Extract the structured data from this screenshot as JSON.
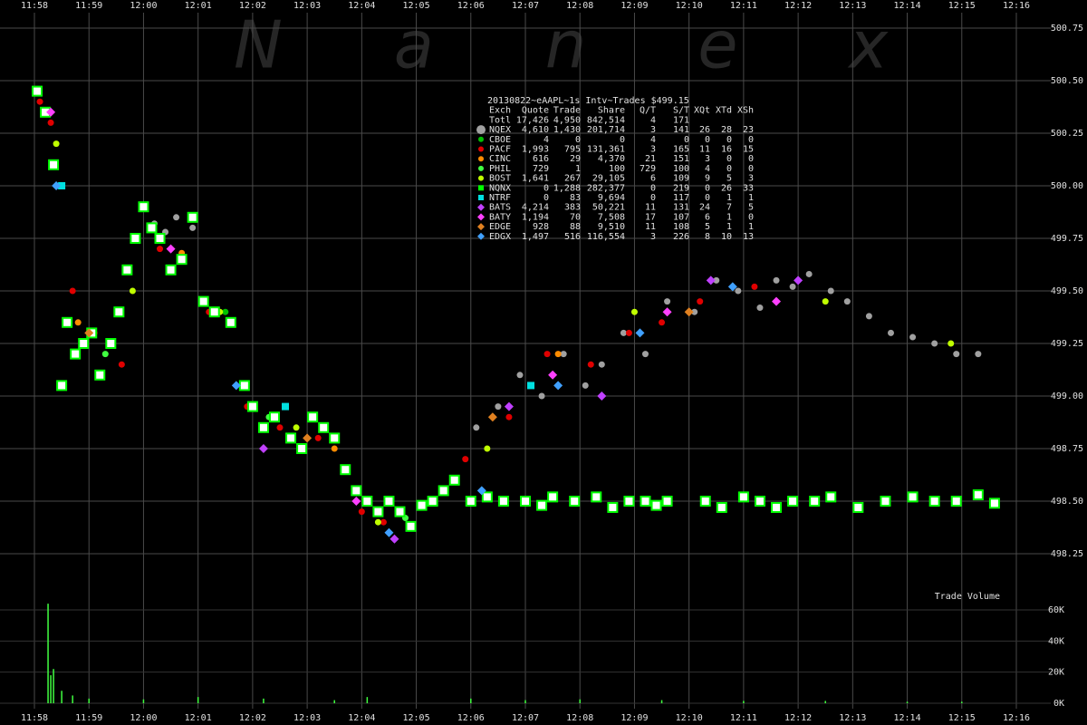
{
  "chart_data": {
    "type": "scatter",
    "watermark": "N a n e x",
    "xticks": [
      {
        "value": 0,
        "label": "11:58"
      },
      {
        "value": 1,
        "label": "11:59"
      },
      {
        "value": 2,
        "label": "12:00"
      },
      {
        "value": 3,
        "label": "12:01"
      },
      {
        "value": 4,
        "label": "12:02"
      },
      {
        "value": 5,
        "label": "12:03"
      },
      {
        "value": 6,
        "label": "12:04"
      },
      {
        "value": 7,
        "label": "12:05"
      },
      {
        "value": 8,
        "label": "12:06"
      },
      {
        "value": 9,
        "label": "12:07"
      },
      {
        "value": 10,
        "label": "12:08"
      },
      {
        "value": 11,
        "label": "12:09"
      },
      {
        "value": 12,
        "label": "12:10"
      },
      {
        "value": 13,
        "label": "12:11"
      },
      {
        "value": 14,
        "label": "12:12"
      },
      {
        "value": 15,
        "label": "12:13"
      },
      {
        "value": 16,
        "label": "12:14"
      },
      {
        "value": 17,
        "label": "12:15"
      },
      {
        "value": 18,
        "label": "12:16"
      }
    ],
    "xlim": [
      0,
      18
    ],
    "ylim": [
      498.25,
      500.75
    ],
    "yticks": [
      498.25,
      {
        "value": 498.5,
        "label": "498.50"
      },
      498.75,
      {
        "value": 499,
        "label": "499.00"
      },
      499.25,
      {
        "value": 499.5,
        "label": "499.50"
      },
      499.75,
      {
        "value": 500,
        "label": "500.00"
      },
      500.25,
      {
        "value": 500.5,
        "label": "500.50"
      },
      500.75
    ],
    "grid": true,
    "table_title": "20130822~eAAPL~1s Intv~Trades $499.15",
    "columns": [
      "Exch",
      "Quote",
      "Trade",
      "Share",
      "Q/T",
      "S/T",
      "XQt",
      "XTd",
      "XSh"
    ],
    "series": [
      {
        "name": "Totl",
        "stats": [
          "17,426",
          "4,950",
          "842,514",
          "4",
          "171"
        ],
        "x": [],
        "values": []
      },
      {
        "name": "NQEX",
        "color": "#a0a0a0",
        "marker": "circle",
        "stats": [
          "4,610",
          "1,430",
          "201,714",
          "3",
          "141",
          "26",
          "28",
          "23"
        ],
        "x": [
          2.2,
          2.4,
          2.6,
          2.9,
          8.1,
          8.5,
          8.9,
          9.3,
          9.7,
          10.1,
          10.4,
          10.8,
          11.2,
          11.6,
          12.1,
          12.5,
          12.9,
          13.3,
          13.6,
          13.9,
          14.2,
          14.6,
          14.9,
          15.3,
          15.7,
          16.1,
          16.5,
          16.9,
          17.3
        ],
        "values": [
          499.82,
          499.78,
          499.85,
          499.8,
          498.85,
          498.95,
          499.1,
          499.0,
          499.2,
          499.05,
          499.15,
          499.3,
          499.2,
          499.45,
          499.4,
          499.55,
          499.5,
          499.42,
          499.55,
          499.52,
          499.58,
          499.5,
          499.45,
          499.38,
          499.3,
          499.28,
          499.25,
          499.2,
          499.2
        ]
      },
      {
        "name": "CBOE",
        "color": "#00c000",
        "marker": "circle",
        "stats": [
          "4",
          "0",
          "0",
          "4",
          "0",
          "0",
          "0",
          "0"
        ],
        "x": [
          3.5
        ],
        "values": [
          499.4
        ]
      },
      {
        "name": "PACF",
        "color": "#e00000",
        "marker": "circle",
        "stats": [
          "1,993",
          "795",
          "131,361",
          "3",
          "165",
          "11",
          "16",
          "15"
        ],
        "x": [
          0.1,
          0.3,
          0.7,
          1.1,
          1.6,
          2.3,
          3.2,
          3.9,
          4.5,
          5.2,
          6.0,
          6.4,
          7.9,
          8.7,
          9.4,
          10.2,
          10.9,
          11.5,
          12.2,
          13.2
        ],
        "values": [
          500.4,
          500.3,
          499.5,
          499.3,
          499.15,
          499.7,
          499.4,
          498.95,
          498.85,
          498.8,
          498.45,
          498.4,
          498.7,
          498.9,
          499.2,
          499.15,
          499.3,
          499.35,
          499.45,
          499.52
        ]
      },
      {
        "name": "CINC",
        "color": "#ff8c00",
        "marker": "circle",
        "stats": [
          "616",
          "29",
          "4,370",
          "21",
          "151",
          "3",
          "0",
          "0"
        ],
        "x": [
          0.8,
          2.7,
          5.5,
          9.6
        ],
        "values": [
          499.35,
          499.68,
          498.75,
          499.2
        ]
      },
      {
        "name": "PHIL",
        "color": "#40ff40",
        "marker": "circle",
        "stats": [
          "729",
          "1",
          "100",
          "729",
          "100",
          "4",
          "0",
          "0"
        ],
        "x": [
          1.3,
          4.3,
          6.8
        ],
        "values": [
          499.2,
          498.9,
          498.42
        ]
      },
      {
        "name": "BOST",
        "color": "#c0ff00",
        "marker": "circle",
        "stats": [
          "1,641",
          "267",
          "29,105",
          "6",
          "109",
          "9",
          "5",
          "3"
        ],
        "x": [
          0.4,
          1.8,
          3.4,
          4.8,
          6.3,
          8.3,
          11.0,
          14.5,
          16.8
        ],
        "values": [
          500.2,
          499.5,
          499.4,
          498.85,
          498.4,
          498.75,
          499.4,
          499.45,
          499.25
        ]
      },
      {
        "name": "NQNX",
        "color": "#00ff00",
        "marker": "square",
        "stats": [
          "0",
          "1,288",
          "282,377",
          "0",
          "219",
          "0",
          "26",
          "33"
        ],
        "x": [
          0.05,
          0.2,
          0.35,
          0.5,
          0.6,
          0.75,
          0.9,
          1.05,
          1.2,
          1.4,
          1.55,
          1.7,
          1.85,
          2.0,
          2.15,
          2.3,
          2.5,
          2.7,
          2.9,
          3.1,
          3.3,
          3.6,
          3.85,
          4.0,
          4.2,
          4.4,
          4.7,
          4.9,
          5.1,
          5.3,
          5.5,
          5.7,
          5.9,
          6.1,
          6.3,
          6.5,
          6.7,
          6.9,
          7.1,
          7.3,
          7.5,
          7.7,
          8.0,
          8.3,
          8.6,
          9.0,
          9.3,
          9.5,
          9.9,
          10.3,
          10.6,
          10.9,
          11.2,
          11.4,
          11.6,
          12.3,
          12.6,
          13.0,
          13.3,
          13.6,
          13.9,
          14.3,
          14.6,
          15.1,
          15.6,
          16.1,
          16.5,
          16.9,
          17.3,
          17.6
        ],
        "values": [
          500.45,
          500.35,
          500.1,
          499.05,
          499.35,
          499.2,
          499.25,
          499.3,
          499.1,
          499.25,
          499.4,
          499.6,
          499.75,
          499.9,
          499.8,
          499.75,
          499.6,
          499.65,
          499.85,
          499.45,
          499.4,
          499.35,
          499.05,
          498.95,
          498.85,
          498.9,
          498.8,
          498.75,
          498.9,
          498.85,
          498.8,
          498.65,
          498.55,
          498.5,
          498.45,
          498.5,
          498.45,
          498.38,
          498.48,
          498.5,
          498.55,
          498.6,
          498.5,
          498.52,
          498.5,
          498.5,
          498.48,
          498.52,
          498.5,
          498.52,
          498.47,
          498.5,
          498.5,
          498.48,
          498.5,
          498.5,
          498.47,
          498.52,
          498.5,
          498.47,
          498.5,
          498.5,
          498.52,
          498.47,
          498.5,
          498.52,
          498.5,
          498.5,
          498.53,
          498.49
        ]
      },
      {
        "name": "NTRF",
        "color": "#00e0e0",
        "marker": "square",
        "stats": [
          "0",
          "83",
          "9,694",
          "0",
          "117",
          "0",
          "1",
          "1"
        ],
        "x": [
          0.5,
          4.6,
          9.1
        ],
        "values": [
          500.0,
          498.95,
          499.05
        ]
      },
      {
        "name": "BATS",
        "color": "#c040ff",
        "marker": "diamond",
        "stats": [
          "4,214",
          "383",
          "50,221",
          "11",
          "131",
          "24",
          "7",
          "5"
        ],
        "x": [
          4.2,
          6.6,
          8.7,
          10.4,
          12.4,
          14.0
        ],
        "values": [
          498.75,
          498.32,
          498.95,
          499.0,
          499.55,
          499.55
        ]
      },
      {
        "name": "BATY",
        "color": "#ff40ff",
        "marker": "diamond",
        "stats": [
          "1,194",
          "70",
          "7,508",
          "17",
          "107",
          "6",
          "1",
          "0"
        ],
        "x": [
          0.3,
          2.5,
          5.9,
          9.5,
          11.6,
          13.6
        ],
        "values": [
          500.35,
          499.7,
          498.5,
          499.1,
          499.4,
          499.45
        ]
      },
      {
        "name": "EDGE",
        "color": "#e08020",
        "marker": "diamond",
        "stats": [
          "928",
          "88",
          "9,510",
          "11",
          "108",
          "5",
          "1",
          "1"
        ],
        "x": [
          1.0,
          5.0,
          8.4,
          12.0
        ],
        "values": [
          499.3,
          498.8,
          498.9,
          499.4
        ]
      },
      {
        "name": "EDGX",
        "color": "#40a0ff",
        "marker": "diamond",
        "stats": [
          "1,497",
          "516",
          "116,554",
          "3",
          "226",
          "8",
          "10",
          "13"
        ],
        "x": [
          0.4,
          3.7,
          6.5,
          8.2,
          9.6,
          11.1,
          12.8
        ],
        "values": [
          500.0,
          499.05,
          498.35,
          498.55,
          499.05,
          499.3,
          499.52
        ]
      }
    ],
    "volume": {
      "label": "Trade Volume",
      "color": "#40ff40",
      "ylim": [
        0,
        60000
      ],
      "yticks": [
        {
          "value": 0,
          "label": "0K"
        },
        {
          "value": 20000,
          "label": "20K"
        },
        {
          "value": 40000,
          "label": "40K"
        },
        {
          "value": 60000,
          "label": "60K"
        }
      ],
      "x": [
        0.25,
        0.3,
        0.35,
        0.5,
        0.7,
        1.0,
        2.0,
        3.0,
        4.2,
        5.5,
        6.1,
        8.0,
        9.0,
        10.0,
        11.5,
        13.0,
        14.5,
        16.0,
        17.0
      ],
      "values": [
        64000,
        18000,
        22000,
        8000,
        5000,
        3000,
        2500,
        4000,
        3000,
        2000,
        4000,
        3000,
        2000,
        2500,
        2000,
        1500,
        1500,
        1000,
        1000
      ]
    }
  }
}
